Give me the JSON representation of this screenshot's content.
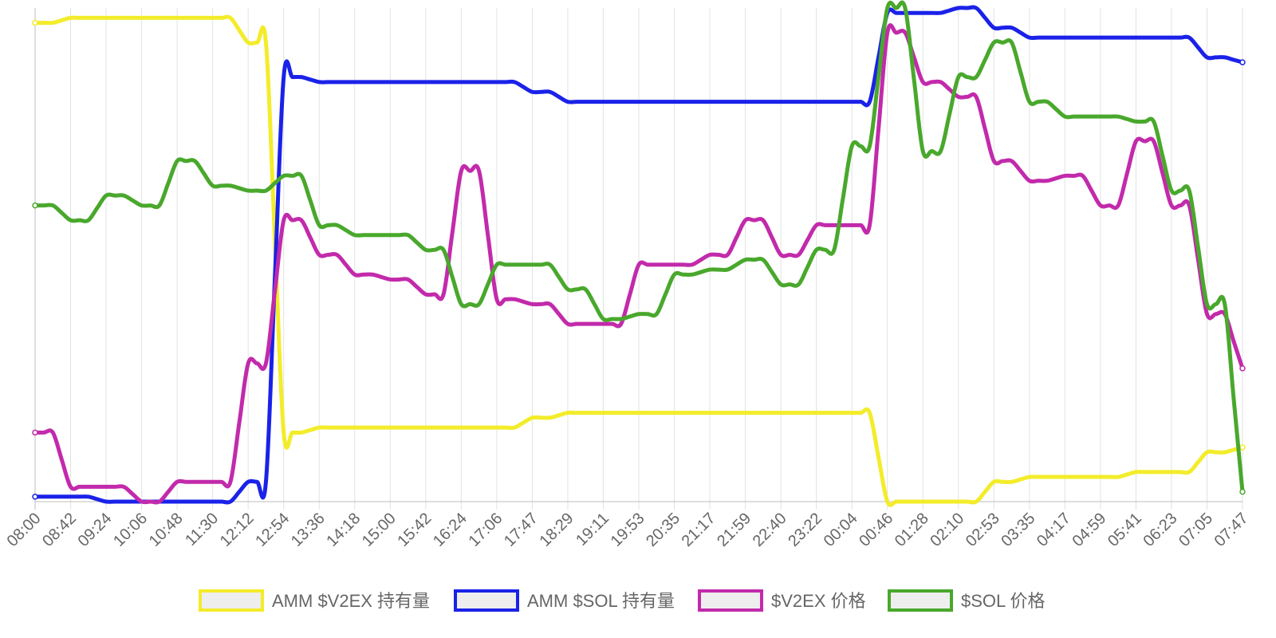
{
  "chart_data": {
    "type": "line",
    "title": "",
    "xlabel": "",
    "ylabel": "",
    "grid": true,
    "legend_position": "bottom",
    "x": [
      "08:00",
      "08:42",
      "09:24",
      "10:06",
      "10:48",
      "11:30",
      "12:12",
      "12:54",
      "13:36",
      "14:18",
      "15:00",
      "15:42",
      "16:24",
      "17:06",
      "17:47",
      "18:29",
      "19:11",
      "19:53",
      "20:35",
      "21:17",
      "21:59",
      "22:40",
      "23:22",
      "00:04",
      "00:46",
      "01:28",
      "02:10",
      "02:53",
      "03:35",
      "04:17",
      "04:59",
      "05:41",
      "06:23",
      "07:05",
      "07:47"
    ],
    "series": [
      {
        "name": "AMM $V2EX 持有量",
        "color": "#f3ec2a",
        "fill": "#eeeeee",
        "values": [
          97,
          98,
          98,
          98,
          98,
          98,
          93,
          14,
          15,
          15,
          15,
          15,
          15,
          15,
          17,
          18,
          18,
          18,
          18,
          18,
          18,
          18,
          18,
          18,
          0,
          0,
          0,
          4,
          5,
          5,
          5,
          6,
          6,
          10,
          11
        ]
      },
      {
        "name": "AMM $SOL 持有量",
        "color": "#1a22e8",
        "fill": "#eeeeee",
        "values": [
          1,
          1,
          0,
          0,
          0,
          0,
          4,
          86,
          85,
          85,
          85,
          85,
          85,
          85,
          83,
          81,
          81,
          81,
          81,
          81,
          81,
          81,
          81,
          81,
          99,
          99,
          100,
          96,
          94,
          94,
          94,
          94,
          94,
          90,
          89
        ]
      },
      {
        "name": "$V2EX 价格",
        "color": "#c22aab",
        "fill": "#eeeeee",
        "values": [
          14,
          3,
          3,
          0,
          4,
          4,
          28,
          57,
          50,
          46,
          45,
          42,
          67,
          41,
          40,
          36,
          36,
          48,
          48,
          50,
          57,
          50,
          56,
          56,
          95,
          85,
          82,
          69,
          65,
          66,
          60,
          73,
          60,
          38,
          27
        ]
      },
      {
        "name": "$SOL 价格",
        "color": "#49a82c",
        "fill": "#eeeeee",
        "values": [
          60,
          57,
          62,
          60,
          69,
          64,
          63,
          66,
          56,
          54,
          54,
          51,
          40,
          48,
          48,
          43,
          37,
          38,
          46,
          47,
          49,
          44,
          51,
          72,
          100,
          71,
          86,
          93,
          81,
          78,
          78,
          77,
          63,
          40,
          2
        ]
      }
    ]
  }
}
